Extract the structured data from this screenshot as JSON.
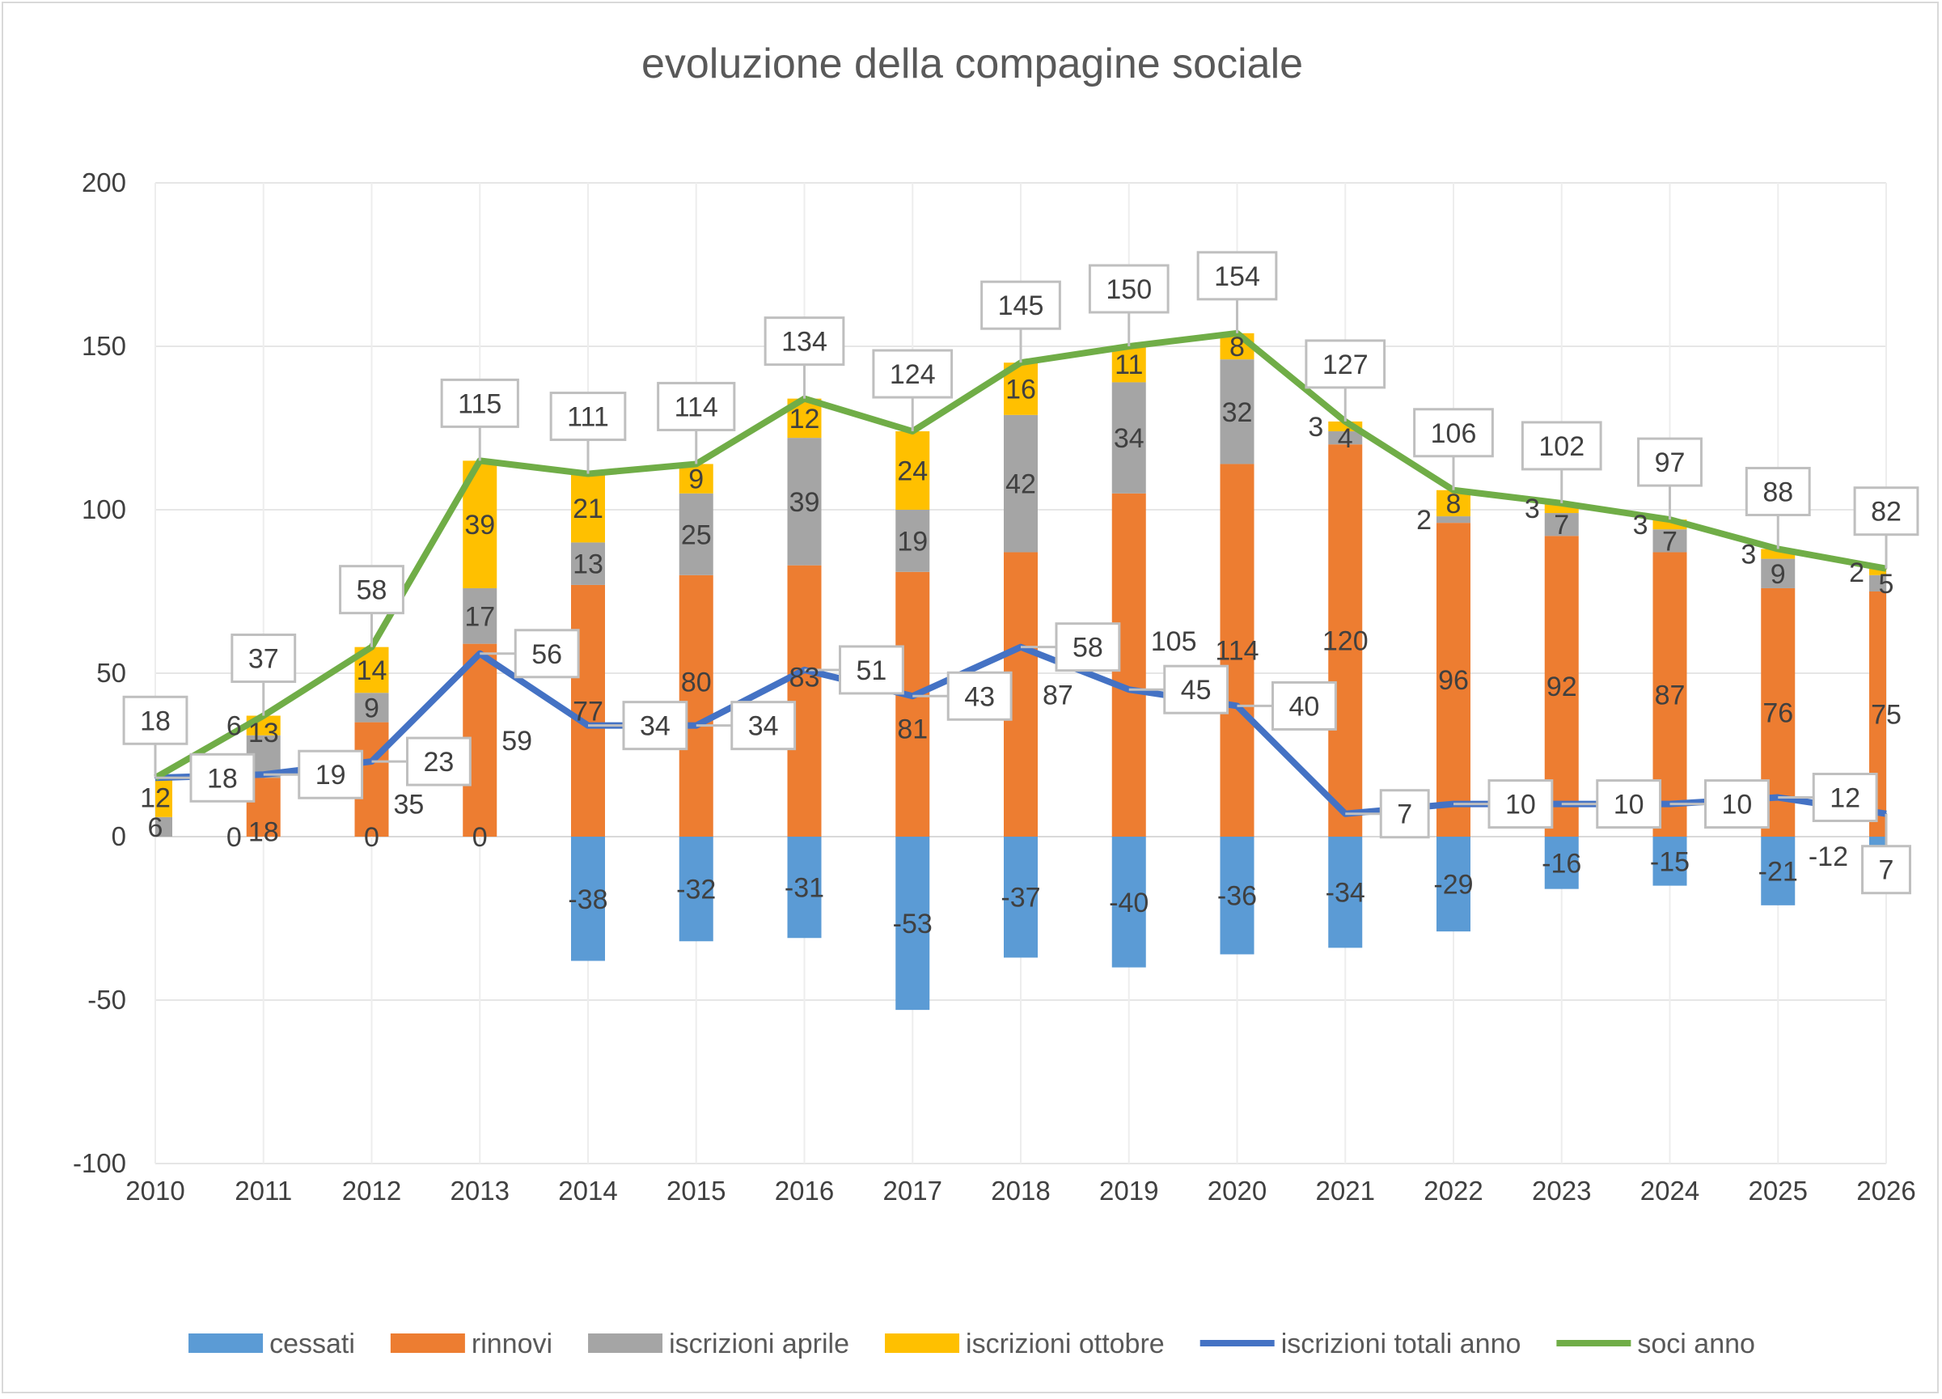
{
  "chart_data": {
    "type": "bar",
    "stacked": true,
    "title": "evoluzione della compagine sociale",
    "xlabel": "",
    "ylabel": "",
    "ylim": [
      -100,
      200
    ],
    "yticks": [
      -100,
      -50,
      0,
      50,
      100,
      150,
      200
    ],
    "grid": true,
    "legend": "bottom",
    "categories": [
      "2010",
      "2011",
      "2012",
      "2013",
      "2014",
      "2015",
      "2016",
      "2017",
      "2018",
      "2019",
      "2020",
      "2021",
      "2022",
      "2023",
      "2024",
      "2025",
      "2026"
    ],
    "bar_series": [
      {
        "name": "cessati",
        "color": "#5b9bd5",
        "values": [
          0,
          0,
          0,
          0,
          -38,
          -32,
          -31,
          -53,
          -37,
          -40,
          -36,
          -34,
          -29,
          -16,
          -15,
          -21,
          -12
        ]
      },
      {
        "name": "rinnovi",
        "color": "#ed7d31",
        "values": [
          0,
          18,
          35,
          59,
          77,
          80,
          83,
          81,
          87,
          105,
          114,
          120,
          96,
          92,
          87,
          76,
          75
        ]
      },
      {
        "name": "iscrizioni aprile",
        "color": "#a5a5a5",
        "values": [
          6,
          13,
          9,
          17,
          13,
          25,
          39,
          19,
          42,
          34,
          32,
          4,
          2,
          7,
          7,
          9,
          5
        ]
      },
      {
        "name": "iscrizioni ottobre",
        "color": "#ffc000",
        "values": [
          12,
          6,
          14,
          39,
          21,
          9,
          12,
          24,
          16,
          11,
          8,
          3,
          8,
          3,
          3,
          3,
          2
        ]
      }
    ],
    "line_series": [
      {
        "name": "iscrizioni totali anno",
        "color": "#4472c4",
        "values": [
          18,
          19,
          23,
          56,
          34,
          34,
          51,
          43,
          58,
          45,
          40,
          7,
          10,
          10,
          10,
          12,
          7
        ]
      },
      {
        "name": "soci anno",
        "color": "#70ad47",
        "values": [
          18,
          37,
          58,
          115,
          111,
          114,
          134,
          124,
          145,
          150,
          154,
          127,
          106,
          102,
          97,
          88,
          82
        ]
      }
    ]
  }
}
